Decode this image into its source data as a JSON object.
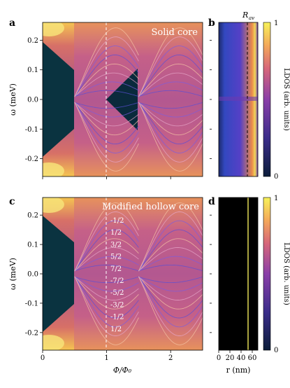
{
  "panels": {
    "a": {
      "label": "a",
      "annotation": "Solid core"
    },
    "b": {
      "label": "b",
      "marker_label": "R_av"
    },
    "c": {
      "label": "c",
      "annotation": "Modified hollow core",
      "mj_labels": [
        "-1/2",
        "1/2",
        "3/2",
        "5/2",
        "7/2",
        "-7/2",
        "-5/2",
        "-3/2",
        "-1/2",
        "1/2"
      ]
    },
    "d": {
      "label": "d"
    }
  },
  "axes": {
    "omega_label": "ω (meV)",
    "phi_label": "Φ/Φ₀",
    "r_label": "r (nm)",
    "cbar_label": "LDOS (arb. units)"
  },
  "chart_data": [
    {
      "panel": "a",
      "type": "heatmap",
      "title": "Solid core",
      "xlabel": "Φ/Φ₀",
      "ylabel": "ω (meV)",
      "xlim": [
        0,
        2.5
      ],
      "ylim": [
        -0.26,
        0.26
      ],
      "x_ticks": [
        0,
        1,
        2
      ],
      "y_ticks": [
        -0.2,
        -0.1,
        0.0,
        0.1,
        0.2
      ],
      "y_tick_labels": [
        "-0.2",
        "-0.1",
        "0.0",
        "0.1",
        "0.2"
      ],
      "lobe_boundaries": [
        0.5,
        1.5
      ],
      "reference_line_x": 1.0,
      "colormap": "plasma-like dark-to-yellow"
    },
    {
      "panel": "b",
      "type": "heatmap",
      "xlabel": "",
      "ylabel": "",
      "marker": "R_av",
      "colorbar": {
        "label": "LDOS (arb. units)",
        "ticks": [
          0,
          1
        ]
      }
    },
    {
      "panel": "c",
      "type": "heatmap",
      "title": "Modified hollow core",
      "xlabel": "Φ/Φ₀",
      "ylabel": "ω (meV)",
      "xlim": [
        0,
        2.5
      ],
      "ylim": [
        -0.26,
        0.26
      ],
      "x_ticks": [
        0,
        1,
        2
      ],
      "y_ticks": [
        -0.2,
        -0.1,
        0.0,
        0.1,
        0.2
      ],
      "y_tick_labels": [
        "-0.2",
        "-0.1",
        "0.0",
        "0.1",
        "0.2"
      ],
      "reference_line_x": 1.0,
      "annotations": [
        "-1/2",
        "1/2",
        "3/2",
        "5/2",
        "7/2",
        "-7/2",
        "-5/2",
        "-3/2",
        "-1/2",
        "1/2"
      ]
    },
    {
      "panel": "d",
      "type": "heatmap",
      "xlabel": "r (nm)",
      "x_ticks": [
        0,
        20,
        40,
        60
      ],
      "colorbar": {
        "label": "LDOS (arb. units)",
        "ticks": [
          0,
          1
        ]
      }
    }
  ]
}
